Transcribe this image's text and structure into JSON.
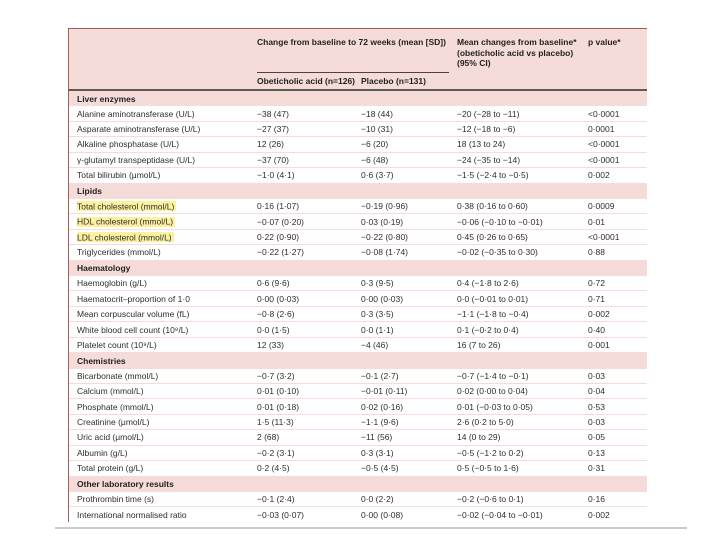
{
  "colors": {
    "table_background": "#f6dcd8",
    "data_row_background": "#ffffff",
    "label_highlight": "#fbf19e",
    "thick_rule": "#5f5a54",
    "thin_rule": "#4a4540",
    "table_border": "#9b5f5a",
    "bottom_rule": "#cbcbcb",
    "text": "#2e2e2e"
  },
  "table": {
    "header": {
      "span": "Change from baseline to 72 weeks (mean [SD])",
      "col_oca": "Obeticholic acid (n=126)",
      "col_placebo": "Placebo (n=131)",
      "diff_line1": "Mean changes from baseline*",
      "diff_line2": "(obeticholic acid vs placebo)",
      "diff_line3": "(95% CI)",
      "col_p": "p value*"
    },
    "sections": [
      {
        "title": "Liver enzymes",
        "rows": [
          {
            "label": "Alanine aminotransferase (U/L)",
            "highlight": false,
            "oca": "−38 (47)",
            "placebo": "−18 (44)",
            "diff": "−20 (−28 to −11)",
            "p": "<0·0001"
          },
          {
            "label": "Asparate aminotransferase (U/L)",
            "highlight": false,
            "oca": "−27 (37)",
            "placebo": "−10 (31)",
            "diff": "−12 (−18 to −6)",
            "p": "0·0001"
          },
          {
            "label": "Alkaline phosphatase (U/L)",
            "highlight": false,
            "oca": "12 (26)",
            "placebo": "−6 (20)",
            "diff": "18 (13 to 24)",
            "p": "<0·0001"
          },
          {
            "label": "γ-glutamyl transpeptidase (U/L)",
            "highlight": false,
            "oca": "−37 (70)",
            "placebo": "−6 (48)",
            "diff": "−24 (−35 to −14)",
            "p": "<0·0001"
          },
          {
            "label": "Total bilirubin (μmol/L)",
            "highlight": false,
            "oca": "−1·0 (4·1)",
            "placebo": "0·6 (3·7)",
            "diff": "−1·5 (−2·4 to −0·5)",
            "p": "0·002"
          }
        ]
      },
      {
        "title": "Lipids",
        "rows": [
          {
            "label": "Total cholesterol (mmol/L)",
            "highlight": true,
            "oca": "0·16 (1·07)",
            "placebo": "−0·19 (0·96)",
            "diff": "0·38 (0·16 to 0·60)",
            "p": "0·0009"
          },
          {
            "label": "HDL cholesterol (mmol/L)",
            "highlight": true,
            "oca": "−0·07 (0·20)",
            "placebo": "0·03 (0·19)",
            "diff": "−0·06 (−0·10 to −0·01)",
            "p": "0·01"
          },
          {
            "label": "LDL cholesterol (mmol/L)",
            "highlight": true,
            "oca": "0·22 (0·90)",
            "placebo": "−0·22 (0·80)",
            "diff": "0·45 (0·26 to 0·65)",
            "p": "<0·0001"
          },
          {
            "label": "Triglycerides (mmol/L)",
            "highlight": false,
            "oca": "−0·22 (1·27)",
            "placebo": "−0·08 (1·74)",
            "diff": "−0·02 (−0·35 to 0·30)",
            "p": "0·88"
          }
        ]
      },
      {
        "title": "Haematology",
        "rows": [
          {
            "label": "Haemoglobin (g/L)",
            "highlight": false,
            "oca": "0·6 (9·6)",
            "placebo": "0·3 (9·5)",
            "diff": "0·4 (−1·8 to 2·6)",
            "p": "0·72"
          },
          {
            "label": "Haematocrit–proportion of 1·0",
            "highlight": false,
            "oca": "0·00 (0·03)",
            "placebo": "0·00 (0·03)",
            "diff": "0·0 (−0·01 to 0·01)",
            "p": "0·71"
          },
          {
            "label": "Mean corpuscular volume (fL)",
            "highlight": false,
            "oca": "−0·8 (2·6)",
            "placebo": "0·3 (3·5)",
            "diff": "−1·1 (−1·8 to −0·4)",
            "p": "0·002"
          },
          {
            "label": "White blood cell count (10⁹/L)",
            "highlight": false,
            "oca": "0·0 (1·5)",
            "placebo": "0·0 (1·1)",
            "diff": "0·1 (−0·2 to 0·4)",
            "p": "0·40"
          },
          {
            "label": "Platelet count (10⁹/L)",
            "highlight": false,
            "oca": "12 (33)",
            "placebo": "−4 (46)",
            "diff": "16 (7 to 26)",
            "p": "0·001"
          }
        ]
      },
      {
        "title": "Chemistries",
        "rows": [
          {
            "label": "Bicarbonate (mmol/L)",
            "highlight": false,
            "oca": "−0·7 (3·2)",
            "placebo": "−0·1 (2·7)",
            "diff": "−0·7 (−1·4 to −0·1)",
            "p": "0·03"
          },
          {
            "label": "Calcium (mmol/L)",
            "highlight": false,
            "oca": "0·01 (0·10)",
            "placebo": "−0·01 (0·11)",
            "diff": "0·02 (0·00 to 0·04)",
            "p": "0·04"
          },
          {
            "label": "Phosphate (mmol/L)",
            "highlight": false,
            "oca": "0·01 (0·18)",
            "placebo": "0·02 (0·16)",
            "diff": "0·01 (−0·03 to 0·05)",
            "p": "0·53"
          },
          {
            "label": "Creatinine (μmol/L)",
            "highlight": false,
            "oca": "1·5 (11·3)",
            "placebo": "−1·1 (9·6)",
            "diff": "2·6 (0·2 to 5·0)",
            "p": "0·03"
          },
          {
            "label": "Uric acid (μmol/L)",
            "highlight": false,
            "oca": "2 (68)",
            "placebo": "−11 (56)",
            "diff": "14 (0 to 29)",
            "p": "0·05"
          },
          {
            "label": "Albumin (g/L)",
            "highlight": false,
            "oca": "−0·2 (3·1)",
            "placebo": "0·3 (3·1)",
            "diff": "−0·5 (−1·2 to 0·2)",
            "p": "0·13"
          },
          {
            "label": "Total protein (g/L)",
            "highlight": false,
            "oca": "0·2 (4·5)",
            "placebo": "−0·5 (4·5)",
            "diff": "0·5 (−0·5 to 1·6)",
            "p": "0·31"
          }
        ]
      },
      {
        "title": "Other laboratory results",
        "rows": [
          {
            "label": "Prothrombin time (s)",
            "highlight": false,
            "oca": "−0·1 (2·4)",
            "placebo": "0·0 (2·2)",
            "diff": "−0·2 (−0·6 to 0·1)",
            "p": "0·16"
          },
          {
            "label": "International normalised ratio",
            "highlight": false,
            "oca": "−0·03 (0·07)",
            "placebo": "0·00 (0·08)",
            "diff": "−0·02 (−0·04 to −0·01)",
            "p": "0·002"
          }
        ]
      }
    ]
  }
}
